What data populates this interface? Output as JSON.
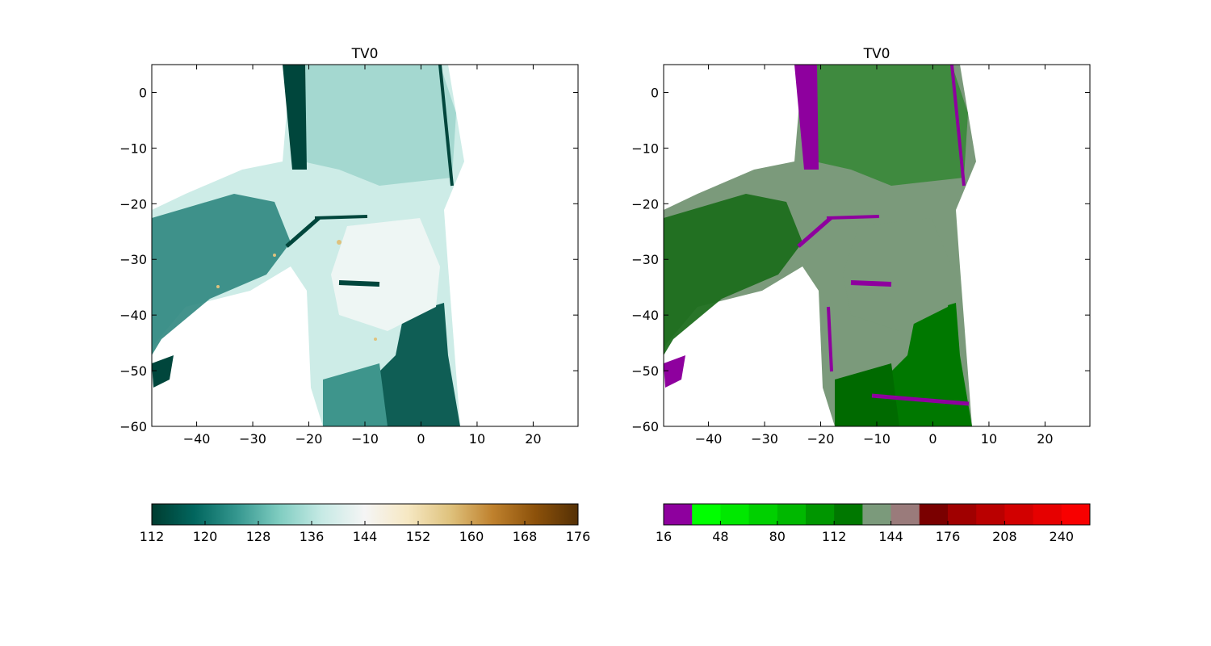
{
  "chart_data": [
    {
      "type": "heatmap",
      "title": "TV0",
      "xlabel": "",
      "ylabel": "",
      "xlim": [
        -48,
        28
      ],
      "ylim": [
        -60,
        5
      ],
      "xticks": [
        "−40",
        "−30",
        "−20",
        "−10",
        "0",
        "10",
        "20"
      ],
      "yticks": [
        "0",
        "−10",
        "−20",
        "−30",
        "−40",
        "−50",
        "−60"
      ],
      "colormap": "BrBG_r",
      "colorbar": {
        "orientation": "horizontal",
        "range": [
          112,
          176
        ],
        "ticks": [
          "112",
          "120",
          "128",
          "136",
          "144",
          "152",
          "160",
          "168",
          "176"
        ],
        "stops": [
          "#003c30",
          "#01665e",
          "#35978f",
          "#80cdc1",
          "#c7eae5",
          "#f5f5f5",
          "#f6e8c3",
          "#dfc27d",
          "#bf812d",
          "#8c510a",
          "#543005"
        ]
      },
      "background_color": "#ffffff"
    },
    {
      "type": "heatmap",
      "title": "TV0",
      "xlabel": "",
      "ylabel": "",
      "xlim": [
        -48,
        28
      ],
      "ylim": [
        -60,
        5
      ],
      "xticks": [
        "−40",
        "−30",
        "−20",
        "−10",
        "0",
        "10",
        "20"
      ],
      "yticks": [
        "0",
        "−10",
        "−20",
        "−30",
        "−40",
        "−50",
        "−60"
      ],
      "colormap": "discrete",
      "colorbar": {
        "orientation": "horizontal",
        "range": [
          16,
          256
        ],
        "ticks": [
          "16",
          "48",
          "80",
          "112",
          "144",
          "176",
          "208",
          "240"
        ],
        "discrete_colors": [
          "#8e009e",
          "#00ff00",
          "#00e800",
          "#00d000",
          "#00b800",
          "#009600",
          "#007800",
          "#7b9a7b",
          "#9a7b7b",
          "#7a0000",
          "#a00000",
          "#ba0000",
          "#d20000",
          "#e60000",
          "#f80000"
        ]
      },
      "background_color": "#ffffff"
    }
  ]
}
